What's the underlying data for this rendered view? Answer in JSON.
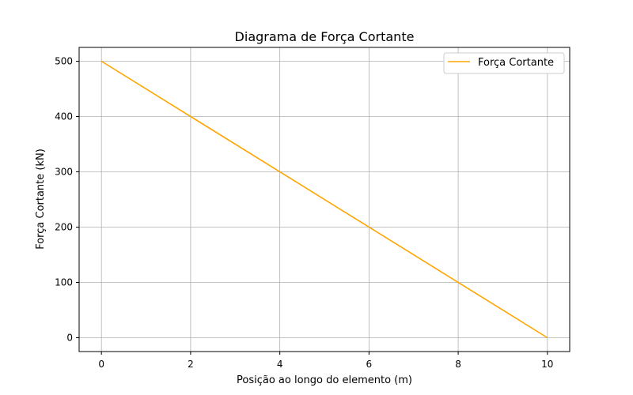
{
  "chart_data": {
    "type": "line",
    "title": "Diagrama de Força Cortante",
    "xlabel": "Posição ao longo do elemento (m)",
    "ylabel": "Força Cortante (kN)",
    "xlim": [
      -0.5,
      10.5
    ],
    "ylim": [
      -25,
      525
    ],
    "xticks": [
      0,
      2,
      4,
      6,
      8,
      10
    ],
    "yticks": [
      0,
      100,
      200,
      300,
      400,
      500
    ],
    "xtick_labels": [
      "0",
      "2",
      "4",
      "6",
      "8",
      "10"
    ],
    "ytick_labels": [
      "0",
      "100",
      "200",
      "300",
      "400",
      "500"
    ],
    "grid": true,
    "legend_position": "upper right",
    "series": [
      {
        "name": "Força Cortante",
        "color": "#ffa500",
        "x": [
          0,
          10
        ],
        "y": [
          500,
          0
        ]
      }
    ]
  }
}
